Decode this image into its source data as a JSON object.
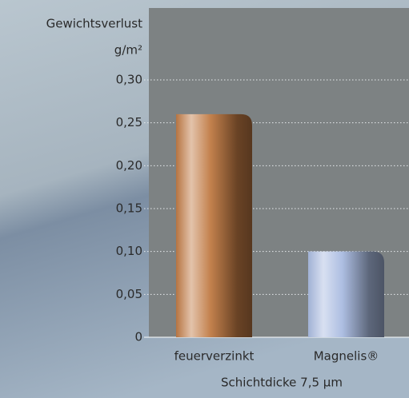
{
  "chart_data": {
    "type": "bar",
    "ylabel": "Gewichtsverlust",
    "yunit": "g/m²",
    "xlabel": "Schichtdicke 7,5 µm",
    "categories": [
      "feuerverzinkt",
      "Magnelis®"
    ],
    "values": [
      0.26,
      0.1
    ],
    "colors": [
      "#c07a44",
      "#a9bbe0"
    ],
    "ylim": [
      0,
      0.3
    ],
    "yticks": [
      0,
      {
        "value": 0.05,
        "label": "0,05"
      },
      {
        "value": 0.1,
        "label": "0,10"
      },
      {
        "value": 0.15,
        "label": "0,15"
      },
      {
        "value": 0.2,
        "label": "0,20"
      },
      {
        "value": 0.25,
        "label": "0,25"
      },
      {
        "value": 0.3,
        "label": "0,30"
      }
    ],
    "grid": true
  }
}
